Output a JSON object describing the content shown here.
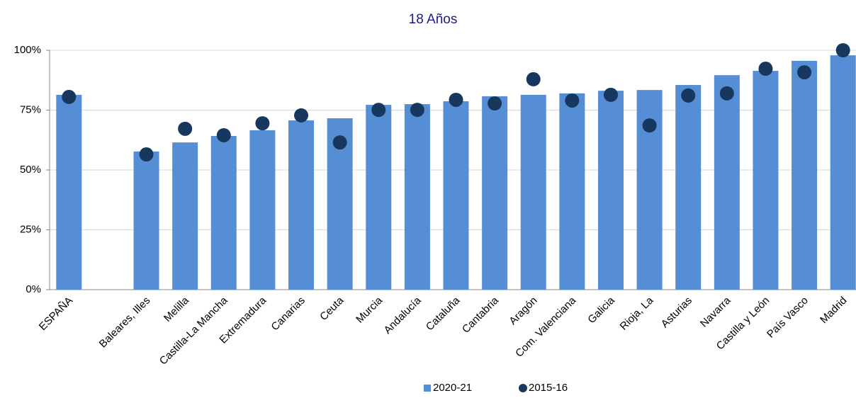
{
  "chart_data": {
    "type": "bar",
    "title": "18 Años",
    "categories": [
      "ESPAÑA",
      null,
      "Baleares, Illes",
      "Melilla",
      "Castilla-La Mancha",
      "Extremadura",
      "Canarias",
      "Ceuta",
      "Murcia",
      "Andalucía",
      "Cataluña",
      "Cantabria",
      "Aragón",
      "Com. Valenciana",
      "Galicia",
      "Rioja, La",
      "Asturias",
      "Navarra",
      "Castilla y León",
      "País Vasco",
      "Madrid"
    ],
    "series": [
      {
        "name": "2020-21",
        "type": "bar",
        "color": "#558ed5",
        "values": [
          81.4,
          null,
          57.7,
          61.5,
          64.2,
          66.6,
          70.7,
          71.6,
          77.2,
          77.5,
          78.7,
          80.8,
          81.4,
          82.0,
          83.1,
          83.4,
          85.5,
          89.6,
          91.4,
          95.6,
          97.9
        ]
      },
      {
        "name": "2015-16",
        "type": "scatter",
        "color": "#17375e",
        "values": [
          80.5,
          null,
          56.5,
          67.2,
          64.5,
          69.5,
          72.8,
          61.5,
          75.1,
          75.1,
          79.3,
          77.8,
          87.9,
          79.0,
          81.4,
          68.6,
          81.1,
          82.0,
          92.3,
          90.8,
          100
        ]
      }
    ],
    "ylim": [
      0,
      100
    ],
    "yticks": [
      {
        "value": 0,
        "label": "0%"
      },
      {
        "value": 25,
        "label": "25%"
      },
      {
        "value": 50,
        "label": "50%"
      },
      {
        "value": 75,
        "label": "75%"
      },
      {
        "value": 100,
        "label": "100%"
      }
    ],
    "grid": true,
    "legend": "bottom"
  }
}
